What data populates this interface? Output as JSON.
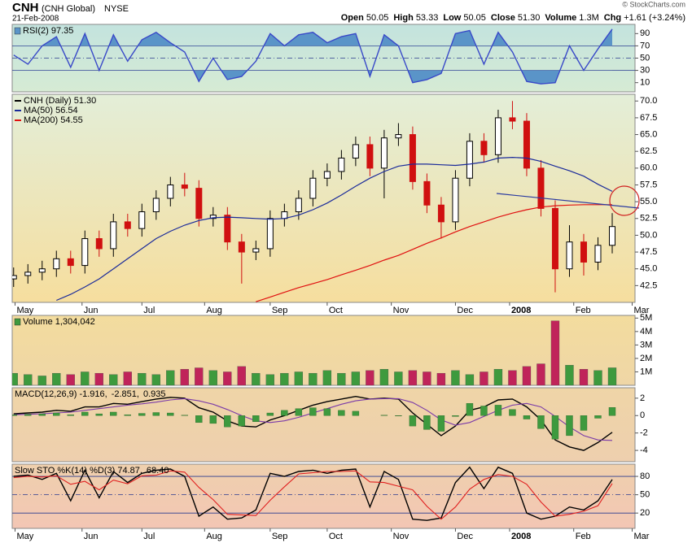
{
  "header": {
    "symbol": "CNH",
    "name": "(CNH Global)",
    "exchange": "NYSE",
    "date": "21-Feb-2008",
    "credit": "© StockCharts.com",
    "quote": [
      {
        "label": "Open",
        "value": "50.05"
      },
      {
        "label": "High",
        "value": "53.33"
      },
      {
        "label": "Low",
        "value": "50.05"
      },
      {
        "label": "Close",
        "value": "51.30"
      },
      {
        "label": "Volume",
        "value": "1.3M"
      },
      {
        "label": "Chg",
        "value": "+1.61 (+3.24%)"
      }
    ]
  },
  "chart_data": [
    {
      "type": "line",
      "xlim": [
        -0.1,
        43.6
      ],
      "ylim": [
        -5,
        105
      ],
      "yticks": [
        10,
        30,
        50,
        70,
        90
      ],
      "levels": [
        30,
        70
      ],
      "midline": 50,
      "series": [
        {
          "name": "RSI(2) 97.35",
          "color": "#3848c8",
          "fill": "#5a94c8",
          "values": [
            55,
            40,
            70,
            85,
            35,
            90,
            30,
            88,
            45,
            80,
            92,
            75,
            60,
            12,
            50,
            15,
            20,
            45,
            90,
            70,
            88,
            92,
            75,
            85,
            90,
            20,
            88,
            70,
            10,
            15,
            25,
            90,
            95,
            40,
            92,
            60,
            12,
            8,
            10,
            70,
            30,
            65,
            97.35
          ]
        }
      ]
    },
    {
      "type": "candlestick",
      "xlim": [
        -0.1,
        43.6
      ],
      "ylim": [
        40,
        71
      ],
      "yticks": [
        42.5,
        {
          "value": 45,
          "label": "45.0"
        },
        47.5,
        {
          "value": 50,
          "label": "50.0"
        },
        52.5,
        {
          "value": 55,
          "label": "55.0"
        },
        57.5,
        {
          "value": 60,
          "label": "60.0"
        },
        62.5,
        {
          "value": 65,
          "label": "65.0"
        },
        67.5,
        {
          "value": 70,
          "label": "70.0"
        }
      ],
      "xticks": [
        {
          "value": 0.1,
          "label": "May"
        },
        {
          "value": 4.8,
          "label": "Jun"
        },
        {
          "value": 9,
          "label": "Jul"
        },
        {
          "value": 13.4,
          "label": "Aug"
        },
        {
          "value": 18,
          "label": "Sep"
        },
        {
          "value": 22,
          "label": "Oct"
        },
        {
          "value": 26.5,
          "label": "Nov"
        },
        {
          "value": 31,
          "label": "Dec"
        },
        {
          "value": 34.8,
          "label": "2008",
          "bold": true
        },
        {
          "value": 39.3,
          "label": "Feb"
        },
        {
          "value": 43.4,
          "label": "Mar"
        }
      ],
      "series": [
        {
          "name": "CNH (Daily) 51.30",
          "up_color": "#000000",
          "down_color": "#d01010",
          "open": [
            43.5,
            44,
            44.5,
            45,
            46.5,
            45.5,
            49.5,
            48,
            52,
            51,
            53.5,
            55.5,
            57.5,
            57,
            52.5,
            53,
            49,
            47.5,
            48,
            52.5,
            53.5,
            55.5,
            58.5,
            59.5,
            61.5,
            63.5,
            60,
            64.5,
            65,
            58,
            54.5,
            52,
            58.5,
            64,
            62,
            67.5,
            67,
            60,
            54,
            45,
            49,
            46,
            48.5
          ],
          "high": [
            45.2,
            45.7,
            46.2,
            47.7,
            47.7,
            50.7,
            50.7,
            53.2,
            53.2,
            54.7,
            56.7,
            58.7,
            59.3,
            58.2,
            54.2,
            54.2,
            50.2,
            49.2,
            53.7,
            54.7,
            56.7,
            59.7,
            60.7,
            62.7,
            64.7,
            64.7,
            65.7,
            66.7,
            66.2,
            59.2,
            55.7,
            59.7,
            65.2,
            65.2,
            68.7,
            70,
            68.2,
            61.2,
            55.2,
            51.5,
            50.2,
            49.7,
            53.3
          ],
          "low": [
            42.3,
            42.8,
            43.3,
            43.8,
            44.3,
            44.3,
            46.8,
            46.8,
            49.8,
            49.8,
            52.3,
            54.3,
            55.8,
            51.3,
            51.3,
            47.8,
            42.8,
            46.3,
            46.8,
            51.3,
            52.3,
            54.3,
            57.3,
            58.3,
            60.3,
            58.8,
            55.5,
            63.3,
            56.8,
            53.3,
            49.5,
            50.8,
            57.3,
            60.8,
            60.8,
            65.8,
            58.8,
            52.8,
            41.5,
            43.8,
            44,
            44.8,
            47.3
          ],
          "close": [
            44,
            44.5,
            45,
            46.5,
            45.5,
            49.5,
            48,
            52,
            51,
            53.5,
            55.5,
            57.5,
            57,
            52.5,
            53,
            49,
            47.5,
            48,
            52.5,
            53.5,
            55.5,
            58.5,
            59.5,
            61.5,
            63.5,
            60,
            64.5,
            65,
            58,
            54.5,
            52,
            58.5,
            64,
            62,
            67.5,
            67,
            60,
            54,
            45,
            49,
            46,
            48.5,
            51.3
          ]
        },
        {
          "name": "MA(50) 56.54",
          "color": "#1a2a9a",
          "values": [
            null,
            null,
            null,
            40.3,
            41.2,
            42.3,
            43.5,
            45,
            46.5,
            48,
            49.5,
            50.6,
            51.5,
            52.2,
            52.6,
            52.7,
            52.6,
            52.5,
            52.4,
            52.5,
            53,
            53.8,
            54.8,
            56,
            57.3,
            58.5,
            59.5,
            60.3,
            60.6,
            60.6,
            60.5,
            60.4,
            60.6,
            60.9,
            61.5,
            61.6,
            61.5,
            61,
            60.3,
            59.6,
            58.8,
            57.6,
            56.54
          ]
        },
        {
          "name": "MA(200) 54.55",
          "color": "#e01010",
          "values": [
            null,
            null,
            null,
            null,
            null,
            null,
            null,
            null,
            null,
            null,
            null,
            null,
            null,
            null,
            null,
            null,
            null,
            40.1,
            40.8,
            41.5,
            42.2,
            42.8,
            43.4,
            44.1,
            44.8,
            45.5,
            46.3,
            47,
            47.9,
            48.8,
            49.6,
            50.5,
            51.3,
            52,
            52.7,
            53.3,
            53.8,
            54.2,
            54.4,
            54.5,
            54.55,
            54.55,
            54.55
          ]
        }
      ]
    },
    {
      "type": "bar",
      "xlim": [
        -0.1,
        43.6
      ],
      "ylim": [
        0,
        5200000
      ],
      "yticks": [
        {
          "value": 1000000,
          "label": "1M"
        },
        {
          "value": 2000000,
          "label": "2M"
        },
        {
          "value": 3000000,
          "label": "3M"
        },
        {
          "value": 4000000,
          "label": "4M"
        },
        {
          "value": 5000000,
          "label": "5M"
        }
      ],
      "series": [
        {
          "name": "Volume 1,304,042",
          "up_color": "#3e9a3e",
          "down_color": "#c0245a",
          "values": [
            900000,
            800000,
            700000,
            900000,
            800000,
            1000000,
            900000,
            800000,
            1000000,
            900000,
            800000,
            1100000,
            1200000,
            1300000,
            1100000,
            1000000,
            1400000,
            900000,
            800000,
            900000,
            1000000,
            900000,
            1100000,
            900000,
            1000000,
            1100000,
            1200000,
            1000000,
            1100000,
            1000000,
            900000,
            1100000,
            800000,
            1000000,
            1200000,
            1100000,
            1400000,
            1600000,
            4800000,
            1500000,
            1200000,
            1100000,
            1304042
          ]
        }
      ]
    },
    {
      "type": "line",
      "xlim": [
        -0.1,
        43.6
      ],
      "ylim": [
        -5.3,
        3.2
      ],
      "yticks": [
        -4,
        -2,
        0,
        2
      ],
      "series": [
        {
          "name": "MACD(12,26,9) -1.916,",
          "color": "#000000",
          "values": [
            0.2,
            0.3,
            0.4,
            0.6,
            0.5,
            1.0,
            1.0,
            1.4,
            1.3,
            1.6,
            1.9,
            2.1,
            2.0,
            0.9,
            0.4,
            -0.6,
            -1.2,
            -1.3,
            -0.5,
            0,
            0.6,
            1.2,
            1.6,
            1.9,
            2.2,
            1.9,
            2.0,
            1.9,
            0.3,
            -1.0,
            -2.3,
            -1.2,
            0.6,
            1.0,
            1.8,
            1.9,
            1.0,
            -0.5,
            -2.8,
            -3.6,
            -4.0,
            -3.1,
            -1.916
          ]
        },
        {
          "name": "-2.851,",
          "color": "#7a3aa8",
          "values": [
            0.1,
            0.15,
            0.2,
            0.3,
            0.4,
            0.6,
            0.8,
            1.0,
            1.2,
            1.35,
            1.55,
            1.8,
            1.95,
            1.7,
            1.3,
            0.7,
            0,
            -0.6,
            -0.8,
            -0.6,
            -0.2,
            0.3,
            0.8,
            1.3,
            1.7,
            1.9,
            1.95,
            1.95,
            1.5,
            0.6,
            -0.5,
            -1.1,
            -0.8,
            -0.1,
            0.6,
            1.2,
            1.4,
            1.0,
            -0.1,
            -1.3,
            -2.3,
            -2.8,
            -2.851
          ]
        },
        {
          "name": "0.935",
          "color": "#3e9a3e",
          "kind": "histogram",
          "values": [
            0.1,
            0.15,
            0.2,
            0.3,
            0.1,
            0.4,
            0.2,
            0.4,
            0.1,
            0.25,
            0.35,
            0.3,
            0.05,
            -0.8,
            -0.9,
            -1.3,
            -1.2,
            -0.7,
            0.3,
            0.6,
            0.8,
            0.9,
            0.8,
            0.6,
            0.5,
            0,
            0.05,
            -0.05,
            -1.2,
            -1.6,
            -1.8,
            -0.1,
            1.4,
            1.1,
            1.2,
            0.7,
            -0.4,
            -1.5,
            -2.7,
            -2.3,
            -1.7,
            -0.3,
            0.935
          ]
        }
      ]
    },
    {
      "type": "line",
      "xlim": [
        -0.1,
        43.6
      ],
      "ylim": [
        -5,
        100
      ],
      "yticks": [
        20,
        50,
        80
      ],
      "levels": [
        20,
        80
      ],
      "midline": 50,
      "xticks": [
        {
          "value": 0.1,
          "label": "May"
        },
        {
          "value": 4.8,
          "label": "Jun"
        },
        {
          "value": 9,
          "label": "Jul"
        },
        {
          "value": 13.4,
          "label": "Aug"
        },
        {
          "value": 18,
          "label": "Sep"
        },
        {
          "value": 22,
          "label": "Oct"
        },
        {
          "value": 26.5,
          "label": "Nov"
        },
        {
          "value": 31,
          "label": "Dec"
        },
        {
          "value": 34.8,
          "label": "2008",
          "bold": true
        },
        {
          "value": 39.3,
          "label": "Feb"
        },
        {
          "value": 43.4,
          "label": "Mar"
        }
      ],
      "series": [
        {
          "name": "Slow STO %K(14) %D(3) 74.87,",
          "color": "#000000",
          "values": [
            80,
            82,
            75,
            85,
            40,
            90,
            45,
            88,
            70,
            85,
            90,
            92,
            80,
            15,
            30,
            10,
            12,
            25,
            85,
            80,
            88,
            90,
            85,
            90,
            92,
            30,
            88,
            75,
            10,
            8,
            12,
            70,
            95,
            60,
            95,
            85,
            20,
            10,
            15,
            30,
            25,
            40,
            74.87
          ]
        },
        {
          "name": "68.40",
          "color": "#e02020",
          "values": [
            78,
            80,
            79,
            81,
            67,
            72,
            58,
            74,
            68,
            81,
            82,
            89,
            87,
            62,
            42,
            18,
            17,
            16,
            41,
            63,
            84,
            86,
            88,
            88,
            89,
            71,
            70,
            64,
            58,
            31,
            10,
            30,
            59,
            75,
            83,
            80,
            67,
            38,
            15,
            18,
            23,
            32,
            68.4
          ]
        }
      ]
    }
  ]
}
